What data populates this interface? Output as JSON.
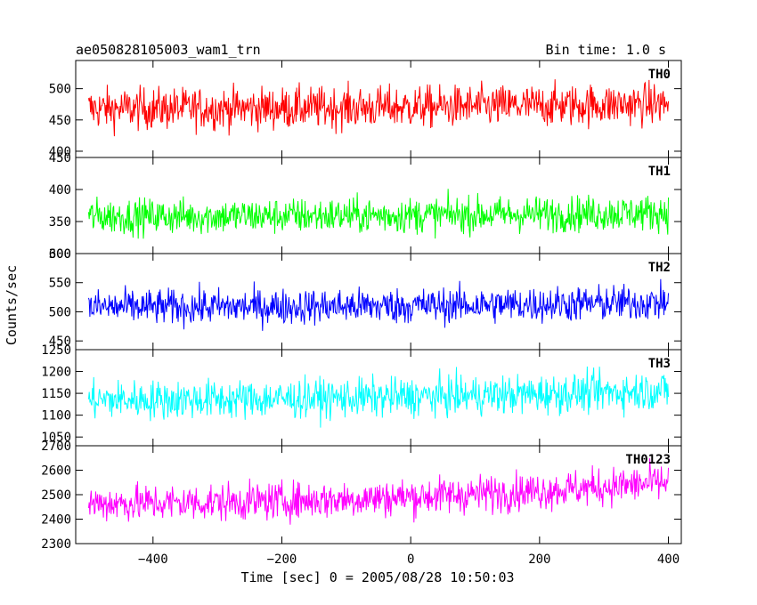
{
  "header": {
    "title": "ae050828105003_wam1_trn",
    "bin_time": "Bin time: 1.0 s"
  },
  "chart_data": {
    "type": "line",
    "title": "ae050828105003_wam1_trn",
    "subtitle": "Bin time: 1.0 s",
    "xlabel": "Time [sec] 0 = 2005/08/28 10:50:03",
    "ylabel": "Counts/sec",
    "xlim": [
      -520,
      420
    ],
    "xticks": [
      -400,
      -200,
      0,
      200,
      400
    ],
    "x_range": [
      -500,
      400
    ],
    "x_step": 1,
    "grid": false,
    "panels": [
      {
        "name": "TH0",
        "color": "#ff0000",
        "ylim": [
          390,
          545
        ],
        "yticks": [
          400,
          450,
          500
        ],
        "mean": 468,
        "noise": 24,
        "trend": 8
      },
      {
        "name": "TH1",
        "color": "#00ff00",
        "ylim": [
          300,
          450
        ],
        "yticks": [
          300,
          350,
          400,
          450
        ],
        "mean": 358,
        "noise": 20,
        "trend": 6
      },
      {
        "name": "TH2",
        "color": "#0000ff",
        "ylim": [
          435,
          600
        ],
        "yticks": [
          450,
          500,
          550,
          600
        ],
        "mean": 508,
        "noise": 22,
        "trend": 8
      },
      {
        "name": "TH3",
        "color": "#00ffff",
        "ylim": [
          1030,
          1250
        ],
        "yticks": [
          1050,
          1100,
          1150,
          1200,
          1250
        ],
        "mean": 1135,
        "noise": 32,
        "trend": 22
      },
      {
        "name": "TH0123",
        "color": "#ff00ff",
        "ylim": [
          2300,
          2700
        ],
        "yticks": [
          2300,
          2400,
          2500,
          2600,
          2700
        ],
        "mean": 2465,
        "noise": 55,
        "trend": 85
      }
    ]
  }
}
